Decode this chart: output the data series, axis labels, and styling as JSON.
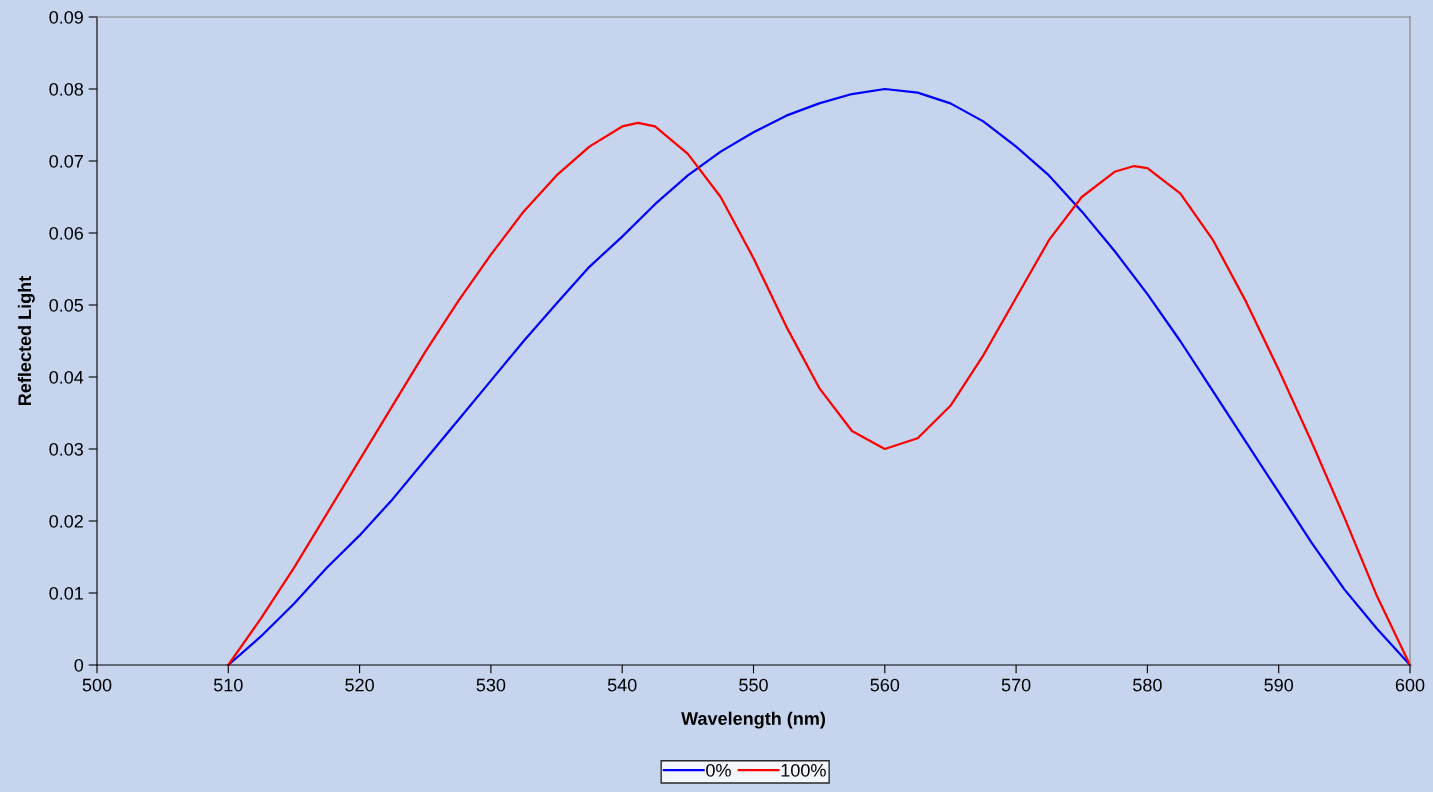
{
  "chart_data": {
    "type": "line",
    "xlabel": "Wavelength (nm)",
    "ylabel": "Reflected Light",
    "xlim": [
      500,
      600
    ],
    "xticks": [
      500,
      510,
      520,
      530,
      540,
      550,
      560,
      570,
      580,
      590,
      600
    ],
    "ylim": [
      0,
      0.09
    ],
    "yticks": [
      0,
      0.01,
      0.02,
      0.03,
      0.04,
      0.05,
      0.06,
      0.07,
      0.08,
      0.09
    ],
    "grid": false,
    "legend": "bottom",
    "marker": "none",
    "line_style": "solid",
    "series": [
      {
        "name": "0%",
        "color": "#0000ff",
        "x": [
          510,
          512.5,
          515,
          517.5,
          520,
          522.5,
          525,
          527.5,
          530,
          532.5,
          535,
          537.5,
          540,
          542.5,
          545,
          547.5,
          550,
          552.5,
          555,
          557.5,
          560,
          562.5,
          565,
          567.5,
          570,
          572.5,
          575,
          577.5,
          580,
          582.5,
          585,
          587.5,
          590,
          592.5,
          595,
          597.5,
          600
        ],
        "values": [
          0,
          0.004,
          0.0085,
          0.0135,
          0.018,
          0.023,
          0.0285,
          0.034,
          0.0395,
          0.045,
          0.0502,
          0.0553,
          0.0595,
          0.064,
          0.068,
          0.0713,
          0.074,
          0.0763,
          0.078,
          0.0793,
          0.08,
          0.0795,
          0.078,
          0.0755,
          0.072,
          0.068,
          0.063,
          0.0575,
          0.0515,
          0.045,
          0.038,
          0.031,
          0.024,
          0.017,
          0.0105,
          0.005,
          0
        ]
      },
      {
        "name": "100%",
        "color": "#ff0000",
        "x": [
          510,
          512.5,
          515,
          517.5,
          520,
          522.5,
          525,
          527.5,
          530,
          532.5,
          535,
          537.5,
          540,
          541.2,
          542.5,
          545,
          547.5,
          550,
          552.5,
          555,
          557.5,
          560,
          562.5,
          565,
          567.5,
          570,
          572.5,
          575,
          577.5,
          579,
          580,
          582.5,
          585,
          587.5,
          590,
          592.5,
          595,
          597.5,
          600
        ],
        "values": [
          0,
          0.0065,
          0.0135,
          0.021,
          0.0285,
          0.036,
          0.0435,
          0.0505,
          0.057,
          0.063,
          0.068,
          0.072,
          0.0748,
          0.0753,
          0.0748,
          0.071,
          0.065,
          0.0565,
          0.047,
          0.0385,
          0.0325,
          0.03,
          0.0315,
          0.036,
          0.043,
          0.051,
          0.059,
          0.065,
          0.0685,
          0.0693,
          0.069,
          0.0655,
          0.059,
          0.0505,
          0.041,
          0.031,
          0.0205,
          0.0095,
          0
        ]
      }
    ]
  }
}
